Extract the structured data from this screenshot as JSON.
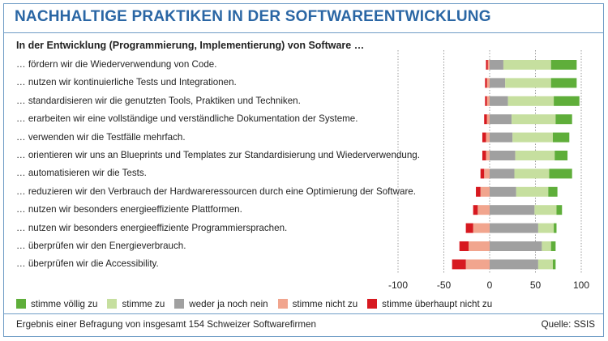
{
  "header": {
    "title": "NACHHALTIGE PRAKTIKEN IN DER SOFTWAREENTWICKLUNG",
    "subtitle": "In der Entwicklung (Programmierung, Implementierung) von Software …"
  },
  "footer": {
    "note": "Ergebnis einer Befragung von insgesamt 154 Schweizer Softwarefirmen",
    "source": "Quelle: SSIS"
  },
  "colors": {
    "stimme_voellig_zu": "#5fae3a",
    "stimme_zu": "#c6df9f",
    "weder_noch": "#a0a0a0",
    "stimme_nicht_zu": "#f1a58e",
    "stimme_ueberhaupt_nicht_zu": "#d71920",
    "gridline": "#9a9a9a"
  },
  "chart_data": {
    "type": "bar",
    "orientation": "horizontal",
    "stacked": "diverging",
    "title": "NACHHALTIGE PRAKTIKEN IN DER SOFTWAREENTWICKLUNG",
    "xlim": [
      -100,
      100
    ],
    "xticks": [
      "-100",
      "-50",
      "0",
      "50",
      "100"
    ],
    "xtick_values": [
      -100,
      -50,
      0,
      50,
      100
    ],
    "grid": "vertical dotted",
    "legend_position": "bottom",
    "categories": [
      "… fördern wir die Wiederverwendung von Code.",
      "… nutzen wir kontinuierliche Tests und Integrationen.",
      "… standardisieren wir die genutzten Tools, Praktiken und Techniken.",
      "… erarbeiten wir eine vollständige und verständliche Dokumentation der Systeme.",
      "… verwenden wir die Testfälle mehrfach.",
      "… orientieren wir uns an Blueprints und Templates zur Standardisierung und Wiederverwendung.",
      "… automatisieren wir die Tests.",
      "… reduzieren wir den Verbrauch der Hardwareressourcen durch eine Optimierung der Software.",
      "… nutzen wir besonders energieeffiziente Plattformen.",
      "… nutzen wir besonders energieeffiziente Programmiersprachen.",
      "… überprüfen wir den Energieverbrauch.",
      "… überprüfen wir die Accessibility."
    ],
    "series": [
      {
        "name": "stimme überhaupt nicht zu",
        "key": "stimme_ueberhaupt_nicht_zu",
        "values": [
          -2,
          -2,
          -2,
          -3,
          -4,
          -4,
          -4,
          -5,
          -5,
          -8,
          -10,
          -15
        ]
      },
      {
        "name": "stimme nicht zu",
        "key": "stimme_nicht_zu",
        "values": [
          -2,
          -3,
          -3,
          -3,
          -4,
          -4,
          -6,
          -10,
          -13,
          -18,
          -23,
          -26
        ]
      },
      {
        "name": "weder ja noch nein",
        "key": "weder_noch",
        "values": [
          15,
          17,
          20,
          24,
          25,
          28,
          27,
          29,
          49,
          53,
          57,
          53
        ]
      },
      {
        "name": "stimme zu",
        "key": "stimme_zu",
        "values": [
          52,
          50,
          50,
          48,
          44,
          43,
          38,
          35,
          24,
          17,
          10,
          16
        ]
      },
      {
        "name": "stimme völlig zu",
        "key": "stimme_voellig_zu",
        "values": [
          28,
          28,
          28,
          18,
          18,
          14,
          25,
          10,
          6,
          3,
          5,
          3
        ]
      }
    ],
    "legend": [
      {
        "label": "stimme völlig zu",
        "key": "stimme_voellig_zu"
      },
      {
        "label": "stimme zu",
        "key": "stimme_zu"
      },
      {
        "label": "weder ja noch nein",
        "key": "weder_noch"
      },
      {
        "label": "stimme nicht zu",
        "key": "stimme_nicht_zu"
      },
      {
        "label": "stimme überhaupt nicht zu",
        "key": "stimme_ueberhaupt_nicht_zu"
      }
    ]
  }
}
